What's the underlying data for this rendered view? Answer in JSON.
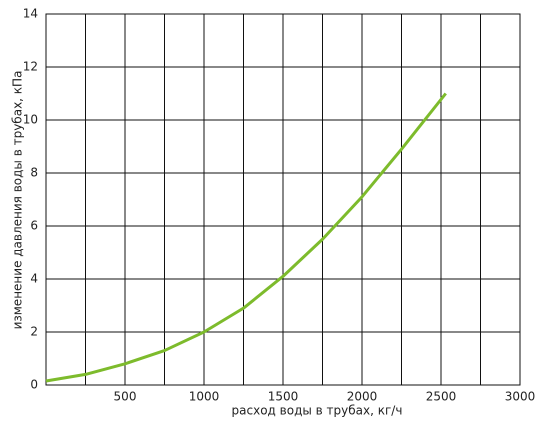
{
  "chart_data": {
    "type": "line",
    "xlabel": "расход воды в трубах, кг/ч",
    "ylabel": "изменение давления воды в трубах, кПа",
    "x": [
      0,
      250,
      500,
      750,
      1000,
      1250,
      1500,
      1750,
      2000,
      2250,
      2530
    ],
    "series": [
      {
        "color": "#7dbb2c",
        "values": [
          0.15,
          0.4,
          0.8,
          1.3,
          2.0,
          2.9,
          4.1,
          5.5,
          7.1,
          8.9,
          11.0
        ]
      }
    ],
    "xlim": [
      0,
      3000
    ],
    "xticks": [
      500,
      1000,
      1500,
      2000,
      2500,
      3000
    ],
    "x_minor_ticks": [
      250,
      750,
      1250,
      1750,
      2250,
      2750
    ],
    "ylim": [
      0,
      14
    ],
    "yticks": [
      0,
      2,
      4,
      6,
      8,
      10,
      12,
      14
    ],
    "grid": true
  }
}
